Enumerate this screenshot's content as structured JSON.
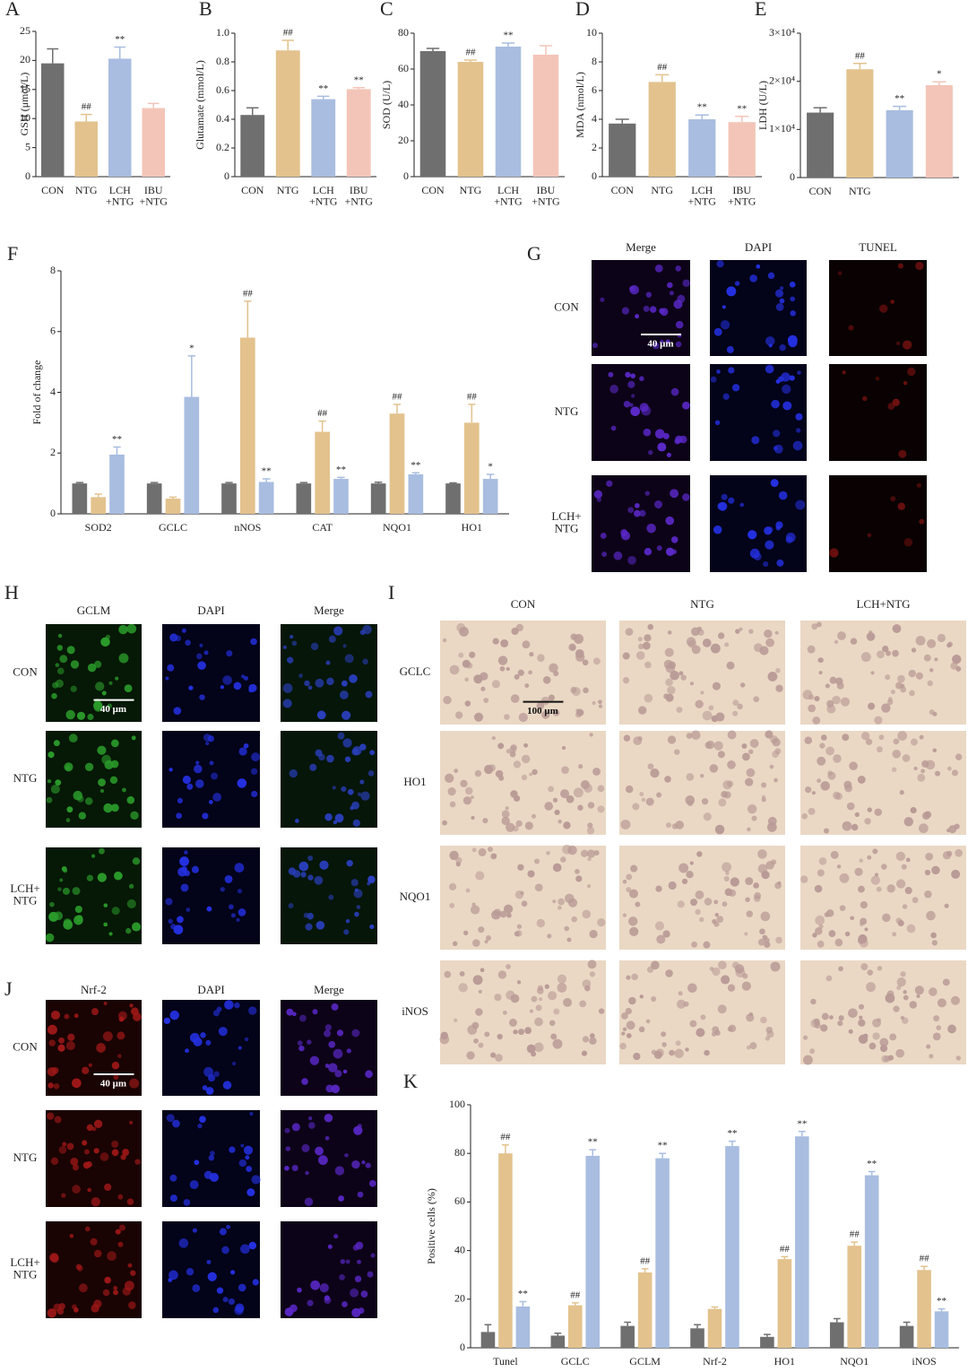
{
  "chart_data": [
    {
      "type": "bar",
      "label": "A",
      "y_label": "GSH (μmol/L)",
      "categories": [
        "CON",
        "NTG",
        "LCH\n+NTG",
        "IBU\n+NTG"
      ],
      "values": [
        19.5,
        9.5,
        20.3,
        11.8
      ],
      "errors": [
        2.5,
        1.2,
        2,
        0.8
      ],
      "markers": [
        null,
        "##",
        "**",
        null
      ],
      "colors": [
        "#6f6f6f",
        "#e3c28d",
        "#a8bde0",
        "#f3c5b8"
      ],
      "ylim": [
        0,
        25
      ],
      "yticks": [
        0,
        5,
        10,
        15,
        20,
        25
      ]
    },
    {
      "type": "bar",
      "label": "B",
      "y_label": "Glutamate (mmol/L)",
      "categories": [
        "CON",
        "NTG",
        "LCH\n+NTG",
        "IBU\n+NTG"
      ],
      "values": [
        0.43,
        0.88,
        0.54,
        0.61
      ],
      "errors": [
        0.05,
        0.07,
        0.02,
        0.01
      ],
      "markers": [
        null,
        "##",
        "**",
        "**"
      ],
      "colors": [
        "#6f6f6f",
        "#e3c28d",
        "#a8bde0",
        "#f3c5b8"
      ],
      "ylim": [
        0,
        1
      ],
      "yticks": [
        0,
        0.2,
        0.4,
        0.6,
        0.8,
        {
          "value": 1,
          "label": "1.0"
        }
      ]
    },
    {
      "type": "bar",
      "label": "C",
      "y_label": "SOD (U/L)",
      "categories": [
        "CON",
        "NTG",
        "LCH\n+NTG",
        "IBU\n+NTG"
      ],
      "values": [
        70,
        64,
        72.5,
        68
      ],
      "errors": [
        1.5,
        1,
        2,
        5
      ],
      "markers": [
        null,
        "##",
        "**",
        null
      ],
      "colors": [
        "#6f6f6f",
        "#e3c28d",
        "#a8bde0",
        "#f3c5b8"
      ],
      "ylim": [
        0,
        80
      ],
      "yticks": [
        0,
        20,
        40,
        60,
        80
      ]
    },
    {
      "type": "bar",
      "label": "D",
      "y_label": "MDA (nmol/L)",
      "categories": [
        "CON",
        "NTG",
        "LCH\n+NTG",
        "IBU\n+NTG"
      ],
      "values": [
        3.7,
        6.6,
        4.0,
        3.8
      ],
      "errors": [
        0.3,
        0.5,
        0.3,
        0.4
      ],
      "markers": [
        null,
        "##",
        "**",
        "**"
      ],
      "colors": [
        "#6f6f6f",
        "#e3c28d",
        "#a8bde0",
        "#f3c5b8"
      ],
      "ylim": [
        0,
        10
      ],
      "yticks": [
        0,
        2,
        4,
        6,
        8,
        10
      ]
    },
    {
      "type": "bar",
      "label": "E",
      "y_label": "LDH (U/L)",
      "categories": [
        "CON",
        "NTG",
        null,
        null
      ],
      "values": [
        13500,
        22500,
        14000,
        19200
      ],
      "errors": [
        1000,
        1200,
        800,
        700
      ],
      "markers": [
        null,
        "##",
        "**",
        "*"
      ],
      "colors": [
        "#6f6f6f",
        "#e3c28d",
        "#a8bde0",
        "#f3c5b8"
      ],
      "ylim": [
        0,
        30000
      ],
      "yticks": [
        0,
        {
          "value": 10000,
          "label": "1×10⁴"
        },
        {
          "value": 20000,
          "label": "2×10⁴"
        },
        {
          "value": 30000,
          "label": "3×10⁴"
        }
      ]
    },
    {
      "type": "bar",
      "label": "F",
      "y_label": "Fold of change",
      "categories": [
        "SOD2",
        "GCLC",
        "nNOS",
        "CAT",
        "NQO1",
        "HO1"
      ],
      "series": [
        {
          "color": "#6f6f6f",
          "values": [
            1,
            1,
            1,
            1,
            1,
            1
          ],
          "errors": [
            0.03,
            0.03,
            0.03,
            0.03,
            0.04,
            0.02
          ],
          "markers": [
            null,
            null,
            null,
            null,
            null,
            null
          ]
        },
        {
          "color": "#e3c28d",
          "values": [
            0.55,
            0.5,
            5.8,
            2.7,
            3.3,
            3.0
          ],
          "errors": [
            0.1,
            0.05,
            1.2,
            0.35,
            0.3,
            0.6
          ],
          "markers": [
            null,
            null,
            "##",
            "##",
            "##",
            "##"
          ]
        },
        {
          "color": "#a8bde0",
          "values": [
            1.95,
            3.85,
            1.05,
            1.15,
            1.3,
            1.15
          ],
          "errors": [
            0.25,
            1.35,
            0.1,
            0.05,
            0.05,
            0.15
          ],
          "markers": [
            "**",
            "*",
            "**",
            "**",
            "**",
            "*"
          ]
        }
      ],
      "ylim": [
        0,
        8
      ],
      "yticks": [
        0,
        2,
        4,
        6,
        8
      ]
    },
    {
      "type": "bar",
      "label": "K",
      "y_label": "Positive cells (%)",
      "categories": [
        "Tunel",
        "GCLC",
        "GCLM",
        "Nrf-2",
        "HO1",
        "NQO1",
        "iNOS"
      ],
      "series": [
        {
          "color": "#6f6f6f",
          "values": [
            6.5,
            5,
            9,
            8,
            4.5,
            10.5,
            9
          ],
          "errors": [
            3,
            1,
            1.5,
            1.5,
            1,
            1.5,
            1.5
          ],
          "markers": [
            null,
            null,
            null,
            null,
            null,
            null,
            null
          ]
        },
        {
          "color": "#e3c28d",
          "values": [
            80,
            17.5,
            31,
            16,
            36.5,
            42,
            32
          ],
          "errors": [
            3.5,
            1,
            1.5,
            0.8,
            1,
            1.5,
            1.5
          ],
          "markers": [
            "##",
            "##",
            "##",
            null,
            "##",
            "##",
            "##"
          ]
        },
        {
          "color": "#a8bde0",
          "values": [
            17,
            79,
            78,
            83,
            87,
            71,
            15
          ],
          "errors": [
            2,
            2.5,
            2,
            2,
            2,
            1.5,
            1
          ],
          "markers": [
            "**",
            "**",
            "**",
            "**",
            "**",
            "**",
            "**"
          ]
        }
      ],
      "ylim": [
        0,
        100
      ],
      "yticks": [
        0,
        20,
        40,
        60,
        80,
        100
      ]
    }
  ],
  "image_panels": [
    {
      "label": "G",
      "columns": [
        "Merge",
        "DAPI",
        "TUNEL"
      ],
      "rows": [
        "CON",
        "NTG",
        "LCH+\nNTG"
      ],
      "scale_bar": "40 μm"
    },
    {
      "label": "H",
      "columns": [
        "GCLM",
        "DAPI",
        "Merge"
      ],
      "rows": [
        "CON",
        "NTG",
        "LCH+\nNTG"
      ],
      "scale_bar": "40 μm"
    },
    {
      "label": "I",
      "columns": [
        "CON",
        "NTG",
        "LCH+NTG"
      ],
      "rows": [
        "GCLC",
        "HO1",
        "NQO1",
        "iNOS"
      ],
      "scale_bar": "100 μm"
    },
    {
      "label": "J",
      "columns": [
        "Nrf-2",
        "DAPI",
        "Merge"
      ],
      "rows": [
        "CON",
        "NTG",
        "LCH+\nNTG"
      ],
      "scale_bar": "40 μm"
    }
  ]
}
